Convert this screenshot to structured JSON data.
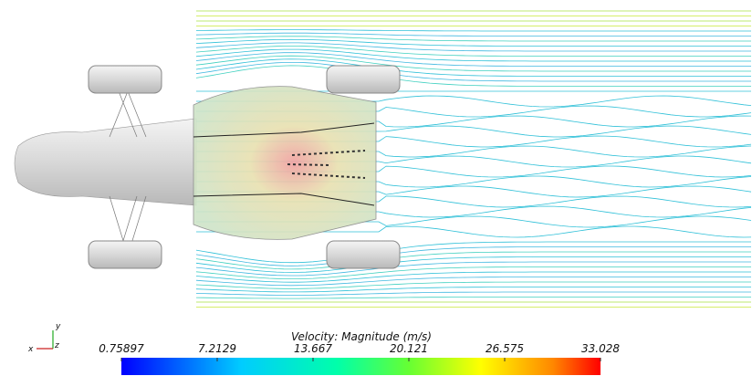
{
  "colorbar": {
    "title": "Velocity: Magnitude (m/s)",
    "range": [
      0.75897,
      33.028
    ],
    "ticks": [
      0.75897,
      7.2129,
      13.667,
      20.121,
      26.575,
      33.028
    ]
  },
  "axes": {
    "x": "x",
    "y": "y",
    "z": "z"
  }
}
